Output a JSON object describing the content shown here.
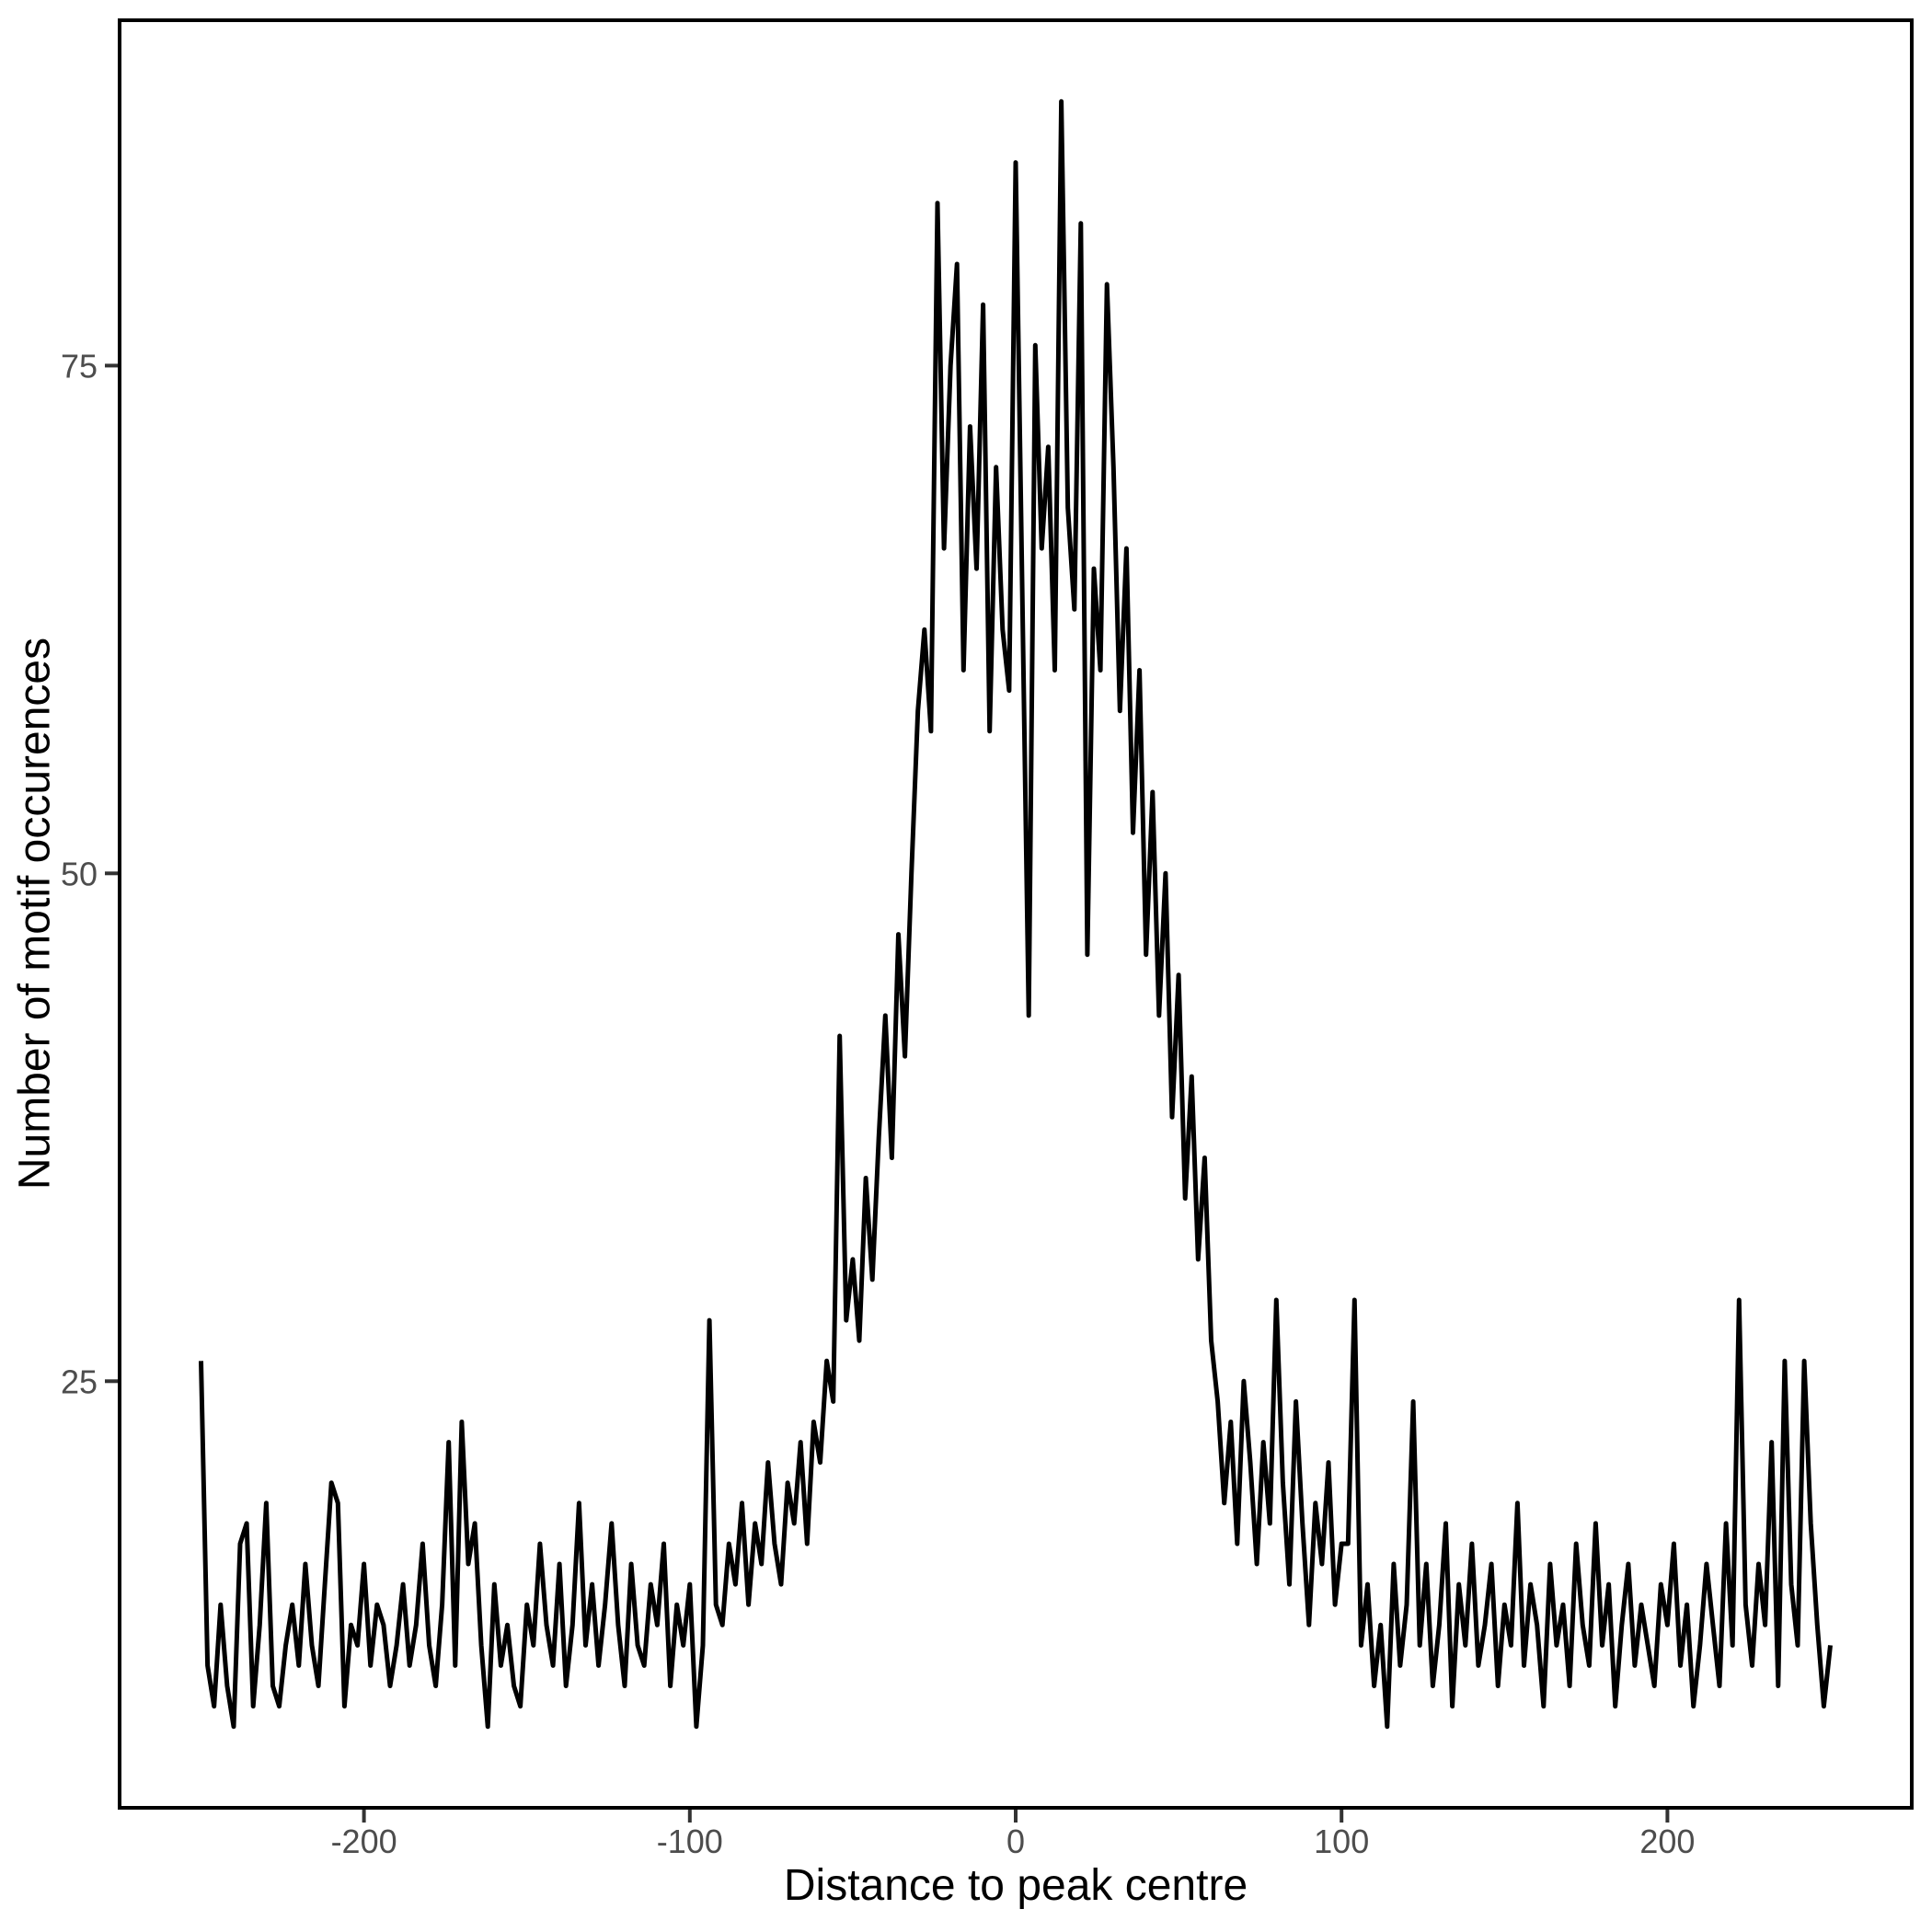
{
  "figure": {
    "background": "#ffffff",
    "panel_border_color": "#000000",
    "line_color": "#000000",
    "tick_mark_color": "#333333",
    "tick_label_color": "#4d4d4d",
    "axis_title_color": "#000000"
  },
  "chart_data": {
    "type": "line",
    "title": "",
    "xlabel": "Distance to peak centre",
    "ylabel": "Number of motif occurences",
    "legend_position": "none",
    "grid": false,
    "xlim": [
      -275,
      275
    ],
    "ylim": [
      4,
      92
    ],
    "x_ticks": [
      -200,
      -100,
      0,
      100,
      200
    ],
    "y_ticks": [
      25,
      50,
      75
    ],
    "x_start": -250,
    "x_step": 2,
    "values": [
      26,
      11,
      9,
      14,
      10,
      8,
      17,
      18,
      9,
      13,
      19,
      10,
      9,
      12,
      14,
      11,
      16,
      12,
      10,
      15,
      20,
      19,
      9,
      13,
      12,
      16,
      11,
      14,
      13,
      10,
      12,
      15,
      11,
      13,
      17,
      12,
      10,
      14,
      22,
      11,
      23,
      16,
      18,
      12,
      8,
      15,
      11,
      13,
      10,
      9,
      14,
      12,
      17,
      13,
      11,
      16,
      10,
      13,
      19,
      12,
      15,
      11,
      14,
      18,
      13,
      10,
      16,
      12,
      11,
      15,
      13,
      17,
      10,
      14,
      12,
      15,
      8,
      12,
      28,
      14,
      13,
      17,
      15,
      19,
      14,
      18,
      16,
      21,
      17,
      15,
      20,
      18,
      22,
      17,
      23,
      21,
      26,
      24,
      42,
      28,
      31,
      27,
      35,
      30,
      37,
      43,
      36,
      47,
      41,
      50,
      58,
      62,
      57,
      83,
      66,
      75,
      80,
      60,
      72,
      65,
      78,
      57,
      70,
      62,
      59,
      85,
      64,
      43,
      76,
      66,
      71,
      60,
      88,
      68,
      63,
      82,
      46,
      65,
      60,
      79,
      70,
      58,
      66,
      52,
      60,
      46,
      54,
      43,
      50,
      38,
      45,
      34,
      40,
      31,
      36,
      27,
      24,
      19,
      23,
      17,
      25,
      21,
      16,
      22,
      18,
      29,
      20,
      15,
      24,
      18,
      13,
      19,
      16,
      21,
      14,
      17,
      17,
      29,
      12,
      15,
      10,
      13,
      8,
      16,
      11,
      14,
      24,
      12,
      16,
      10,
      13,
      18,
      9,
      15,
      12,
      17,
      11,
      13,
      16,
      10,
      14,
      12,
      19,
      11,
      15,
      13,
      9,
      16,
      12,
      14,
      10,
      17,
      13,
      11,
      18,
      12,
      15,
      9,
      13,
      16,
      11,
      14,
      12,
      10,
      15,
      13,
      17,
      11,
      14,
      9,
      12,
      16,
      13,
      10,
      18,
      12,
      29,
      14,
      11,
      16,
      13,
      22,
      10,
      26,
      15,
      12,
      26,
      18,
      13,
      9,
      12
    ]
  }
}
